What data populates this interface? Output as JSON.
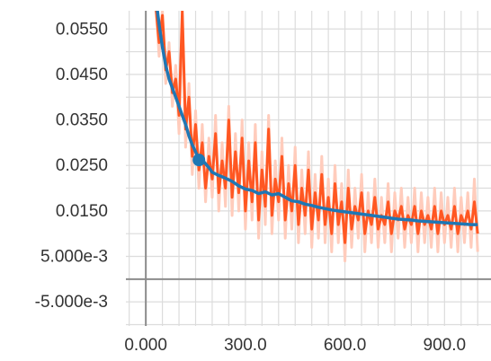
{
  "chart_data": {
    "type": "line",
    "title": "",
    "xlabel": "",
    "ylabel": "",
    "xlim": [
      -60,
      1040
    ],
    "ylim": [
      -0.0103,
      0.059
    ],
    "grid": true,
    "x_ticks": [
      0,
      300,
      600,
      900
    ],
    "x_tick_labels": [
      "0.000",
      "300.0",
      "600.0",
      "900.0"
    ],
    "y_ticks": [
      0.055,
      0.045,
      0.035,
      0.025,
      0.015,
      0.005,
      -0.005
    ],
    "y_tick_labels": [
      "0.0550",
      "0.0450",
      "0.0350",
      "0.0250",
      "0.0150",
      "5.000e-3",
      "-5.000e-3"
    ],
    "colors": {
      "smoothed": "#1f77b4",
      "raw": "#ff5722",
      "raw_band": "#ffccbc",
      "grid": "#dcdcdc",
      "axis": "#8c8c8c"
    },
    "highlight_point": {
      "x": 160,
      "y": 0.0262
    },
    "series": [
      {
        "role": "smoothed",
        "x": [
          30,
          40,
          50,
          60,
          70,
          80,
          90,
          100,
          110,
          120,
          130,
          140,
          150,
          160,
          175,
          190,
          200,
          220,
          240,
          260,
          280,
          300,
          320,
          340,
          360,
          380,
          400,
          420,
          440,
          460,
          480,
          500,
          520,
          540,
          560,
          580,
          600,
          620,
          640,
          660,
          680,
          700,
          720,
          740,
          760,
          780,
          800,
          820,
          840,
          860,
          880,
          900,
          920,
          940,
          960,
          980,
          1000
        ],
        "y": [
          0.062,
          0.056,
          0.051,
          0.047,
          0.044,
          0.042,
          0.04,
          0.038,
          0.036,
          0.034,
          0.0315,
          0.0295,
          0.028,
          0.0262,
          0.0258,
          0.0245,
          0.0235,
          0.0228,
          0.0222,
          0.0215,
          0.0205,
          0.0198,
          0.0195,
          0.0188,
          0.0192,
          0.0185,
          0.0188,
          0.018,
          0.0172,
          0.017,
          0.0165,
          0.0162,
          0.0158,
          0.0155,
          0.0152,
          0.015,
          0.0148,
          0.0146,
          0.0144,
          0.0142,
          0.014,
          0.0138,
          0.0136,
          0.0134,
          0.0132,
          0.0131,
          0.013,
          0.0128,
          0.0127,
          0.0126,
          0.0125,
          0.0124,
          0.0123,
          0.0122,
          0.0121,
          0.012,
          0.012
        ]
      },
      {
        "role": "raw",
        "x": [
          30,
          40,
          50,
          60,
          70,
          80,
          90,
          100,
          110,
          120,
          130,
          140,
          150,
          160,
          170,
          180,
          190,
          200,
          210,
          220,
          230,
          240,
          250,
          260,
          270,
          280,
          290,
          300,
          310,
          320,
          330,
          340,
          350,
          360,
          370,
          380,
          390,
          400,
          410,
          420,
          430,
          440,
          450,
          460,
          470,
          480,
          490,
          500,
          510,
          520,
          530,
          540,
          550,
          560,
          570,
          580,
          590,
          600,
          610,
          620,
          630,
          640,
          650,
          660,
          670,
          680,
          690,
          700,
          710,
          720,
          730,
          740,
          750,
          760,
          770,
          780,
          790,
          800,
          810,
          820,
          830,
          840,
          850,
          860,
          870,
          880,
          890,
          900,
          910,
          920,
          930,
          940,
          950,
          960,
          970,
          980,
          990,
          1000
        ],
        "y": [
          0.06,
          0.052,
          0.058,
          0.046,
          0.05,
          0.041,
          0.044,
          0.036,
          0.059,
          0.033,
          0.04,
          0.027,
          0.034,
          0.024,
          0.03,
          0.02,
          0.027,
          0.022,
          0.032,
          0.019,
          0.026,
          0.02,
          0.035,
          0.018,
          0.028,
          0.019,
          0.031,
          0.015,
          0.026,
          0.017,
          0.03,
          0.013,
          0.024,
          0.016,
          0.033,
          0.014,
          0.022,
          0.017,
          0.027,
          0.013,
          0.021,
          0.015,
          0.025,
          0.012,
          0.02,
          0.014,
          0.024,
          0.011,
          0.019,
          0.013,
          0.023,
          0.012,
          0.018,
          0.01,
          0.021,
          0.012,
          0.017,
          0.008,
          0.02,
          0.011,
          0.016,
          0.013,
          0.019,
          0.01,
          0.015,
          0.012,
          0.018,
          0.011,
          0.014,
          0.012,
          0.017,
          0.01,
          0.015,
          0.013,
          0.016,
          0.011,
          0.014,
          0.012,
          0.016,
          0.01,
          0.015,
          0.012,
          0.014,
          0.011,
          0.016,
          0.01,
          0.015,
          0.012,
          0.014,
          0.011,
          0.016,
          0.01,
          0.014,
          0.012,
          0.015,
          0.011,
          0.017,
          0.01
        ]
      },
      {
        "role": "raw_band",
        "x": [
          30,
          40,
          50,
          60,
          70,
          80,
          90,
          100,
          110,
          120,
          130,
          140,
          150,
          160,
          170,
          180,
          190,
          200,
          210,
          220,
          230,
          240,
          250,
          260,
          270,
          280,
          290,
          300,
          310,
          320,
          330,
          340,
          350,
          360,
          370,
          380,
          390,
          400,
          410,
          420,
          430,
          440,
          450,
          460,
          470,
          480,
          490,
          500,
          510,
          520,
          530,
          540,
          550,
          560,
          570,
          580,
          590,
          600,
          610,
          620,
          630,
          640,
          650,
          660,
          670,
          680,
          690,
          700,
          710,
          720,
          730,
          740,
          750,
          760,
          770,
          780,
          790,
          800,
          810,
          820,
          830,
          840,
          850,
          860,
          870,
          880,
          890,
          900,
          910,
          920,
          930,
          940,
          950,
          960,
          970,
          980,
          990,
          1000
        ],
        "y": [
          0.061,
          0.049,
          0.059,
          0.043,
          0.052,
          0.038,
          0.047,
          0.032,
          0.058,
          0.029,
          0.043,
          0.023,
          0.037,
          0.02,
          0.034,
          0.017,
          0.031,
          0.018,
          0.036,
          0.015,
          0.03,
          0.016,
          0.038,
          0.014,
          0.032,
          0.015,
          0.035,
          0.011,
          0.03,
          0.013,
          0.034,
          0.009,
          0.028,
          0.012,
          0.036,
          0.01,
          0.026,
          0.013,
          0.031,
          0.009,
          0.025,
          0.011,
          0.029,
          0.008,
          0.024,
          0.01,
          0.028,
          0.007,
          0.023,
          0.009,
          0.027,
          0.008,
          0.022,
          0.006,
          0.025,
          0.008,
          0.021,
          0.004,
          0.024,
          0.007,
          0.02,
          0.009,
          0.023,
          0.006,
          0.019,
          0.008,
          0.022,
          0.007,
          0.018,
          0.008,
          0.021,
          0.006,
          0.019,
          0.009,
          0.02,
          0.007,
          0.018,
          0.008,
          0.02,
          0.006,
          0.019,
          0.008,
          0.018,
          0.007,
          0.02,
          0.006,
          0.019,
          0.008,
          0.018,
          0.007,
          0.02,
          0.006,
          0.018,
          0.008,
          0.019,
          0.007,
          0.022,
          0.006
        ]
      }
    ]
  }
}
